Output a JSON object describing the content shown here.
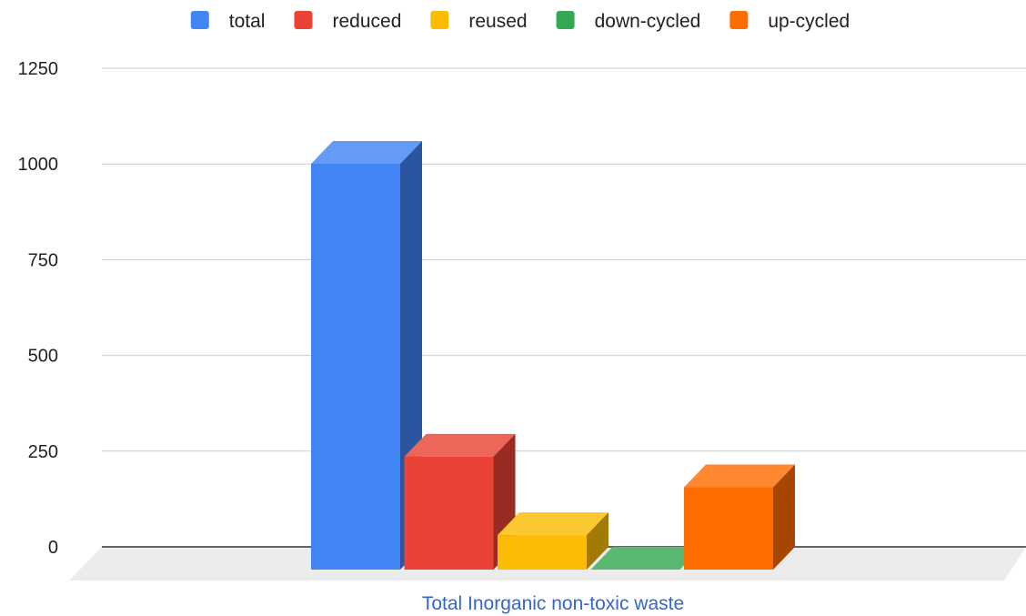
{
  "chart_data": {
    "type": "bar",
    "style": "3d",
    "categories": [
      "Total Inorganic non-toxic waste"
    ],
    "series": [
      {
        "name": "total",
        "values": [
          1060
        ],
        "color": "#4285f4"
      },
      {
        "name": "reduced",
        "values": [
          295
        ],
        "color": "#ea4335"
      },
      {
        "name": "reused",
        "values": [
          90
        ],
        "color": "#fbbc04"
      },
      {
        "name": "down-cycled",
        "values": [
          0
        ],
        "color": "#34a853"
      },
      {
        "name": "up-cycled",
        "values": [
          215
        ],
        "color": "#ff6d01"
      }
    ],
    "y_ticks": [
      "0",
      "250",
      "500",
      "750",
      "1000",
      "1250"
    ],
    "ylim": [
      0,
      1250
    ],
    "grid": true,
    "legend_position": "top",
    "category_label_color": "#3366cc"
  }
}
